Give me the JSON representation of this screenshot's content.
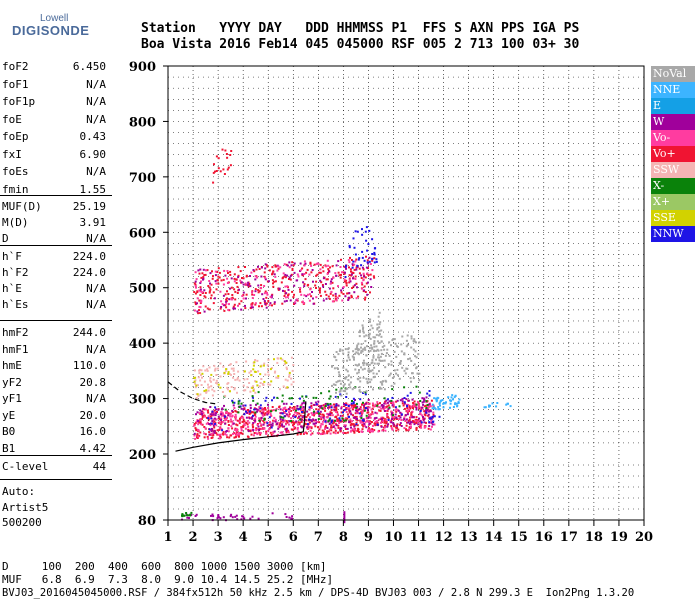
{
  "logo": {
    "top_text": "Lowell",
    "main_text": "DIGISONDE"
  },
  "header": {
    "row1": "Station   YYYY DAY   DDD HHMMSS P1  FFS S AXN PPS IGA PS",
    "row2": "Boa Vista 2016 Feb14 045 045000 RSF 005 2 713 100 03+ 30"
  },
  "params_group1": [
    {
      "k": "foF2",
      "v": "6.450"
    },
    {
      "k": "foF1",
      "v": "N/A"
    },
    {
      "k": "foF1p",
      "v": "N/A"
    },
    {
      "k": "foE",
      "v": "N/A"
    },
    {
      "k": "foEp",
      "v": "0.43"
    },
    {
      "k": "fxI",
      "v": "6.90"
    },
    {
      "k": "foEs",
      "v": "N/A"
    },
    {
      "k": "fmin",
      "v": "1.55"
    }
  ],
  "params_group2": [
    {
      "k": "MUF(D)",
      "v": "25.19"
    },
    {
      "k": "M(D)",
      "v": "3.91"
    },
    {
      "k": "D",
      "v": "N/A"
    }
  ],
  "params_group3": [
    {
      "k": "h`F",
      "v": "224.0"
    },
    {
      "k": "h`F2",
      "v": "224.0"
    },
    {
      "k": "h`E",
      "v": "N/A"
    },
    {
      "k": "h`Es",
      "v": "N/A"
    }
  ],
  "params_group4": [
    {
      "k": "hmF2",
      "v": "244.0"
    },
    {
      "k": "hmF1",
      "v": "N/A"
    },
    {
      "k": "hmE",
      "v": "110.0"
    },
    {
      "k": "yF2",
      "v": "20.8"
    },
    {
      "k": "yF1",
      "v": "N/A"
    },
    {
      "k": "yE",
      "v": "20.0"
    },
    {
      "k": "B0",
      "v": "16.0"
    },
    {
      "k": "B1",
      "v": "4.42"
    }
  ],
  "params_group5": [
    {
      "k": "C-level",
      "v": "44"
    }
  ],
  "auto": {
    "line1": "Auto:",
    "line2": "Artist5",
    "line3": "500200"
  },
  "legend": [
    {
      "label": "NoVal",
      "color": "#a8a8a8"
    },
    {
      "label": "NNE",
      "color": "#3cb4ff"
    },
    {
      "label": "E",
      "color": "#14a0e6"
    },
    {
      "label": "W",
      "color": "#a0009b"
    },
    {
      "label": "Vo-",
      "color": "#ff3ca0"
    },
    {
      "label": "Vo+",
      "color": "#f01432"
    },
    {
      "label": "SSW",
      "color": "#f5b4b4"
    },
    {
      "label": "X-",
      "color": "#0a820a"
    },
    {
      "label": "X+",
      "color": "#9bc864"
    },
    {
      "label": "SSE",
      "color": "#d2d200"
    },
    {
      "label": "NNW",
      "color": "#1e14e6"
    }
  ],
  "bottom": {
    "row1": "D     100  200  400  600  800 1000 1500 3000 [km]",
    "row2": "MUF   6.8  6.9  7.3  8.0  9.0 10.4 14.5 25.2 [MHz]",
    "row3": "BVJ03_2016045045000.RSF / 384fx512h 50 kHz 2.5 km / DPS-4D BVJ03 003 / 2.8 N 299.3 E  Ion2Png 1.3.20"
  },
  "chart_data": {
    "type": "scatter",
    "xlim": [
      1,
      20
    ],
    "ylim": [
      80,
      900
    ],
    "x_ticks": [
      "1",
      "2",
      "3",
      "4",
      "5",
      "6",
      "7",
      "8",
      "9",
      "10",
      "11",
      "12",
      "13",
      "14",
      "15",
      "16",
      "17",
      "18",
      "19",
      "20"
    ],
    "y_ticks": [
      "900",
      "800",
      "700",
      "600",
      "500",
      "400",
      "300",
      "200",
      "80"
    ],
    "y_tick_values": [
      900,
      800,
      700,
      600,
      500,
      400,
      300,
      200,
      80
    ],
    "grid": "dotted",
    "trace_solid": [
      [
        1.3,
        205
      ],
      [
        2,
        212
      ],
      [
        3,
        220
      ],
      [
        4,
        226
      ],
      [
        5,
        231
      ],
      [
        6,
        236
      ],
      [
        6.4,
        240
      ],
      [
        6.45,
        260
      ],
      [
        6.5,
        295
      ]
    ],
    "trace_dashed": [
      [
        1.0,
        330
      ],
      [
        1.5,
        312
      ],
      [
        2.0,
        300
      ],
      [
        2.5,
        293
      ],
      [
        3.0,
        290
      ]
    ],
    "echo_regions": [
      {
        "x": [
          2.0,
          11.6
        ],
        "y": [
          228,
          300
        ],
        "color": "#f01432",
        "density": 650
      },
      {
        "x": [
          2.0,
          11.6
        ],
        "y": [
          228,
          300
        ],
        "color": "#ff3ca0",
        "density": 420
      },
      {
        "x": [
          2.0,
          11.6
        ],
        "y": [
          235,
          305
        ],
        "color": "#a0009b",
        "density": 260
      },
      {
        "x": [
          2.5,
          11.8
        ],
        "y": [
          240,
          320
        ],
        "color": "#1e14e6",
        "density": 100
      },
      {
        "x": [
          3.0,
          11.5
        ],
        "y": [
          250,
          330
        ],
        "color": "#0a820a",
        "density": 80
      },
      {
        "x": [
          7.5,
          11.0
        ],
        "y": [
          300,
          420
        ],
        "color": "#a8a8a8",
        "density": 220
      },
      {
        "x": [
          8.5,
          9.5
        ],
        "y": [
          330,
          460
        ],
        "color": "#a8a8a8",
        "density": 90
      },
      {
        "x": [
          2.0,
          6.0
        ],
        "y": [
          300,
          380
        ],
        "color": "#f5b4b4",
        "density": 150
      },
      {
        "x": [
          2.0,
          6.0
        ],
        "y": [
          300,
          380
        ],
        "color": "#d2d200",
        "density": 40
      },
      {
        "x": [
          11.5,
          12.6
        ],
        "y": [
          280,
          310
        ],
        "color": "#3cb4ff",
        "density": 50
      },
      {
        "x": [
          13.5,
          14.7
        ],
        "y": [
          285,
          295
        ],
        "color": "#3cb4ff",
        "density": 12
      },
      {
        "x": [
          2.0,
          9.2
        ],
        "y": [
          455,
          560
        ],
        "color": "#f01432",
        "density": 320
      },
      {
        "x": [
          2.0,
          9.2
        ],
        "y": [
          455,
          560
        ],
        "color": "#a0009b",
        "density": 140
      },
      {
        "x": [
          2.0,
          9.2
        ],
        "y": [
          455,
          560
        ],
        "color": "#ff3ca0",
        "density": 120
      },
      {
        "x": [
          8.0,
          9.3
        ],
        "y": [
          520,
          620
        ],
        "color": "#1e14e6",
        "density": 40
      },
      {
        "x": [
          2.7,
          3.5
        ],
        "y": [
          690,
          760
        ],
        "color": "#f01432",
        "density": 20
      },
      {
        "x": [
          1.5,
          6.0
        ],
        "y": [
          80,
          95
        ],
        "color": "#a0009b",
        "density": 40
      },
      {
        "x": [
          1.5,
          2.0
        ],
        "y": [
          88,
          96
        ],
        "color": "#0a820a",
        "density": 12
      }
    ]
  }
}
